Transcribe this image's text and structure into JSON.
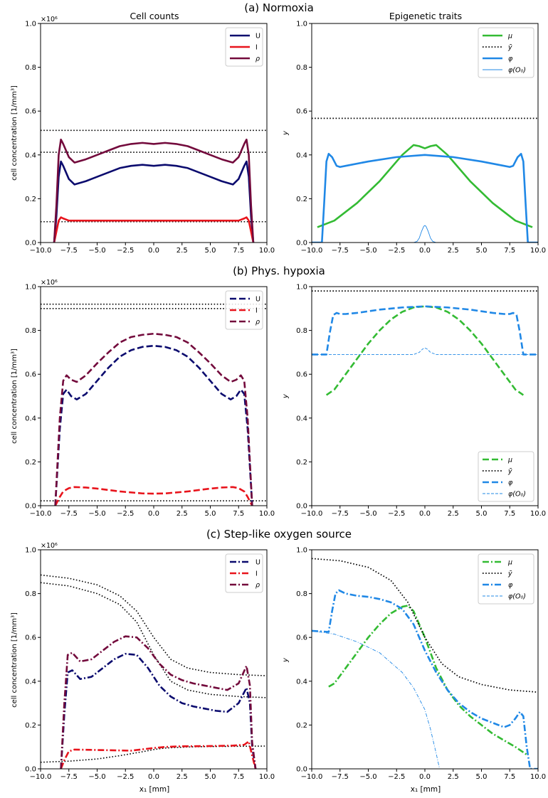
{
  "figure": {
    "rows": [
      {
        "title": "(a) Normoxia"
      },
      {
        "title": "(b) Phys. hypoxia"
      },
      {
        "title": "(c) Step-like oxygen source"
      }
    ],
    "col_titles": [
      "Cell counts",
      "Epigenetic traits"
    ],
    "left_ylabel": "cell concentration [1/mm³]",
    "left_multiplier": "×10⁶",
    "right_ylabel": "y",
    "xlabel": "x₁ [mm]",
    "x_ticks": [
      "−10.0",
      "−7.5",
      "−5.0",
      "−2.5",
      "0.0",
      "2.5",
      "5.0",
      "7.5",
      "10.0"
    ],
    "y_ticks": [
      "0.0",
      "0.2",
      "0.4",
      "0.6",
      "0.8",
      "1.0"
    ]
  },
  "colors": {
    "U": "#0b0b6e",
    "I": "#e8141c",
    "rho": "#730a3c",
    "mu": "#33bb33",
    "ybar": "#000000",
    "phi": "#2088e6"
  },
  "chart_data": [
    {
      "panel": "a-left",
      "type": "line",
      "title": "Cell counts",
      "ylabel": "cell concentration [1/mm³]",
      "xlim": [
        -10,
        10
      ],
      "ylim": [
        0,
        1
      ],
      "y_multiplier": "×10⁶",
      "legend": "top-right",
      "linestyle": "solid",
      "series": [
        {
          "name": "U",
          "x": [
            -8.8,
            -8.6,
            -8.4,
            -8.2,
            -8.0,
            -7.5,
            -7.0,
            -6.0,
            -5.0,
            -4.0,
            -3.0,
            -2.0,
            -1.0,
            0.0,
            1.0,
            2.0,
            3.0,
            4.0,
            5.0,
            6.0,
            7.0,
            7.5,
            8.0,
            8.2,
            8.4,
            8.6,
            8.8
          ],
          "values": [
            0,
            0.12,
            0.3,
            0.37,
            0.35,
            0.29,
            0.265,
            0.28,
            0.3,
            0.32,
            0.34,
            0.35,
            0.355,
            0.35,
            0.355,
            0.35,
            0.34,
            0.32,
            0.3,
            0.28,
            0.265,
            0.29,
            0.35,
            0.37,
            0.3,
            0.12,
            0
          ]
        },
        {
          "name": "I",
          "x": [
            -8.8,
            -8.6,
            -8.4,
            -8.2,
            -8.0,
            -7.5,
            -7.0,
            -5.0,
            -2.5,
            0.0,
            2.5,
            5.0,
            7.0,
            7.5,
            8.0,
            8.2,
            8.4,
            8.6,
            8.8
          ],
          "values": [
            0,
            0.05,
            0.1,
            0.115,
            0.11,
            0.1,
            0.1,
            0.1,
            0.1,
            0.1,
            0.1,
            0.1,
            0.1,
            0.1,
            0.11,
            0.115,
            0.1,
            0.05,
            0
          ]
        },
        {
          "name": "ρ",
          "x": [
            -8.8,
            -8.6,
            -8.4,
            -8.2,
            -8.0,
            -7.5,
            -7.0,
            -6.0,
            -5.0,
            -4.0,
            -3.0,
            -2.0,
            -1.0,
            0.0,
            1.0,
            2.0,
            3.0,
            4.0,
            5.0,
            6.0,
            7.0,
            7.5,
            8.0,
            8.2,
            8.4,
            8.6,
            8.8
          ],
          "values": [
            0,
            0.17,
            0.4,
            0.47,
            0.45,
            0.39,
            0.365,
            0.38,
            0.4,
            0.42,
            0.44,
            0.45,
            0.455,
            0.45,
            0.455,
            0.45,
            0.44,
            0.42,
            0.4,
            0.38,
            0.365,
            0.39,
            0.45,
            0.47,
            0.4,
            0.17,
            0
          ]
        }
      ],
      "hlines": [
        0.512,
        0.412,
        0.095
      ]
    },
    {
      "panel": "a-right",
      "type": "line",
      "title": "Epigenetic traits",
      "ylabel": "y",
      "xlim": [
        -10,
        10
      ],
      "ylim": [
        0,
        1
      ],
      "legend": "top-right",
      "linestyle": "solid",
      "series": [
        {
          "name": "μ",
          "x": [
            -9.5,
            -8.0,
            -6.0,
            -4.0,
            -2.0,
            -1.0,
            -0.5,
            0.0,
            0.5,
            1.0,
            2.0,
            4.0,
            6.0,
            8.0,
            9.5
          ],
          "values": [
            0.07,
            0.1,
            0.18,
            0.28,
            0.4,
            0.445,
            0.44,
            0.43,
            0.44,
            0.445,
            0.4,
            0.28,
            0.18,
            0.1,
            0.07
          ]
        },
        {
          "name": "ȳ",
          "x": [
            -10,
            10
          ],
          "values": [
            0.567,
            0.567
          ],
          "style": "dotted"
        },
        {
          "name": "φ",
          "x": [
            -10,
            -9.1,
            -8.9,
            -8.7,
            -8.5,
            -8.2,
            -7.8,
            -7.5,
            -7.0,
            -5.0,
            -2.5,
            0.0,
            2.5,
            5.0,
            7.0,
            7.5,
            7.8,
            8.2,
            8.5,
            8.7,
            8.9,
            9.1,
            10
          ],
          "values": [
            0,
            0,
            0.18,
            0.37,
            0.405,
            0.39,
            0.35,
            0.345,
            0.35,
            0.37,
            0.39,
            0.4,
            0.39,
            0.37,
            0.35,
            0.345,
            0.35,
            0.39,
            0.405,
            0.37,
            0.18,
            0,
            0
          ]
        },
        {
          "name": "φ(O₀)",
          "x": [
            -1.0,
            -0.7,
            -0.5,
            -0.3,
            -0.1,
            0.0,
            0.1,
            0.3,
            0.5,
            0.7,
            1.0
          ],
          "values": [
            0,
            0.005,
            0.02,
            0.05,
            0.074,
            0.078,
            0.074,
            0.05,
            0.02,
            0.005,
            0
          ],
          "style": "thin"
        }
      ]
    },
    {
      "panel": "b-left",
      "type": "line",
      "xlim": [
        -10,
        10
      ],
      "ylim": [
        0,
        1
      ],
      "y_multiplier": "×10⁶",
      "ylabel": "cell concentration [1/mm³]",
      "legend": "top-right",
      "linestyle": "dashed",
      "series": [
        {
          "name": "U",
          "x": [
            -8.7,
            -8.3,
            -8.0,
            -7.7,
            -7.3,
            -6.8,
            -6.0,
            -5.0,
            -4.0,
            -3.0,
            -2.0,
            -1.0,
            0.0,
            1.0,
            2.0,
            3.0,
            4.0,
            5.0,
            6.0,
            6.8,
            7.3,
            7.7,
            8.0,
            8.3,
            8.7
          ],
          "values": [
            0,
            0.35,
            0.51,
            0.53,
            0.5,
            0.485,
            0.51,
            0.57,
            0.63,
            0.68,
            0.71,
            0.725,
            0.73,
            0.725,
            0.71,
            0.68,
            0.63,
            0.57,
            0.51,
            0.485,
            0.5,
            0.53,
            0.51,
            0.35,
            0
          ]
        },
        {
          "name": "I",
          "x": [
            -8.7,
            -8.3,
            -8.0,
            -7.5,
            -7.0,
            -6.0,
            -5.0,
            -3.0,
            -1.0,
            0.0,
            1.0,
            3.0,
            5.0,
            6.0,
            7.0,
            7.5,
            8.0,
            8.3,
            8.7
          ],
          "values": [
            0,
            0.04,
            0.065,
            0.08,
            0.085,
            0.083,
            0.078,
            0.065,
            0.056,
            0.055,
            0.056,
            0.065,
            0.078,
            0.083,
            0.085,
            0.08,
            0.065,
            0.04,
            0
          ]
        },
        {
          "name": "ρ",
          "x": [
            -8.7,
            -8.3,
            -8.0,
            -7.7,
            -7.3,
            -6.8,
            -6.0,
            -5.0,
            -4.0,
            -3.0,
            -2.0,
            -1.0,
            0.0,
            1.0,
            2.0,
            3.0,
            4.0,
            5.0,
            6.0,
            6.8,
            7.3,
            7.7,
            8.0,
            8.3,
            8.7
          ],
          "values": [
            0,
            0.4,
            0.57,
            0.595,
            0.575,
            0.565,
            0.595,
            0.65,
            0.7,
            0.745,
            0.77,
            0.78,
            0.785,
            0.78,
            0.77,
            0.745,
            0.7,
            0.65,
            0.595,
            0.565,
            0.575,
            0.595,
            0.57,
            0.4,
            0
          ]
        }
      ],
      "hlines": [
        0.92,
        0.9,
        0.022
      ]
    },
    {
      "panel": "b-right",
      "type": "line",
      "xlim": [
        -10,
        10
      ],
      "ylim": [
        0,
        1
      ],
      "ylabel": "y",
      "legend": "bottom-right",
      "linestyle": "dashed",
      "series": [
        {
          "name": "μ",
          "x": [
            -8.7,
            -8.0,
            -7.0,
            -6.0,
            -5.0,
            -4.0,
            -3.0,
            -2.0,
            -1.0,
            0.0,
            1.0,
            2.0,
            3.0,
            4.0,
            5.0,
            6.0,
            7.0,
            8.0,
            8.7
          ],
          "values": [
            0.505,
            0.53,
            0.6,
            0.67,
            0.74,
            0.8,
            0.85,
            0.885,
            0.905,
            0.91,
            0.905,
            0.885,
            0.85,
            0.8,
            0.74,
            0.67,
            0.6,
            0.53,
            0.505
          ]
        },
        {
          "name": "ȳ",
          "x": [
            -10,
            10
          ],
          "values": [
            0.98,
            0.98
          ],
          "style": "dotted"
        },
        {
          "name": "φ",
          "x": [
            -10,
            -8.7,
            -8.4,
            -8.1,
            -7.8,
            -7.5,
            -7.0,
            -6.0,
            -4.0,
            -2.0,
            0.0,
            2.0,
            4.0,
            6.0,
            7.0,
            7.5,
            7.8,
            8.1,
            8.4,
            8.7,
            10
          ],
          "values": [
            0.69,
            0.69,
            0.79,
            0.87,
            0.88,
            0.875,
            0.875,
            0.88,
            0.895,
            0.905,
            0.91,
            0.905,
            0.895,
            0.88,
            0.875,
            0.875,
            0.88,
            0.87,
            0.79,
            0.69,
            0.69
          ]
        },
        {
          "name": "φ(O₀)",
          "x": [
            -10,
            -1.0,
            -0.5,
            -0.2,
            0.0,
            0.2,
            0.5,
            1.0,
            10
          ],
          "values": [
            0.69,
            0.69,
            0.7,
            0.715,
            0.72,
            0.715,
            0.7,
            0.69,
            0.69
          ],
          "style": "thin"
        }
      ]
    },
    {
      "panel": "c-left",
      "type": "line",
      "xlim": [
        -10,
        10
      ],
      "ylim": [
        0,
        1
      ],
      "y_multiplier": "×10⁶",
      "ylabel": "cell concentration [1/mm³]",
      "xlabel": "x₁ [mm]",
      "legend": "top-right",
      "linestyle": "dashdot",
      "series": [
        {
          "name": "U",
          "x": [
            -8.2,
            -7.9,
            -7.6,
            -7.2,
            -6.5,
            -5.5,
            -4.5,
            -3.5,
            -2.5,
            -1.5,
            -0.5,
            0.5,
            1.5,
            2.5,
            3.5,
            4.5,
            5.5,
            6.5,
            7.5,
            8.2,
            8.5,
            8.7,
            9.0
          ],
          "values": [
            0,
            0.25,
            0.44,
            0.45,
            0.41,
            0.42,
            0.46,
            0.5,
            0.525,
            0.52,
            0.46,
            0.38,
            0.33,
            0.3,
            0.285,
            0.275,
            0.265,
            0.26,
            0.3,
            0.37,
            0.3,
            0.1,
            0
          ]
        },
        {
          "name": "I",
          "x": [
            -8.2,
            -7.9,
            -7.5,
            -7.0,
            -6.0,
            -4.0,
            -2.0,
            0.0,
            1.0,
            2.5,
            5.0,
            7.0,
            8.0,
            8.4,
            8.7,
            9.0
          ],
          "values": [
            0,
            0.04,
            0.08,
            0.088,
            0.087,
            0.085,
            0.083,
            0.095,
            0.1,
            0.103,
            0.104,
            0.106,
            0.11,
            0.125,
            0.06,
            0
          ]
        },
        {
          "name": "ρ",
          "x": [
            -8.2,
            -7.9,
            -7.6,
            -7.2,
            -6.5,
            -5.5,
            -4.5,
            -3.5,
            -2.5,
            -1.5,
            -0.5,
            0.5,
            1.5,
            2.5,
            3.5,
            4.5,
            5.5,
            6.5,
            7.5,
            8.2,
            8.5,
            8.7,
            9.0
          ],
          "values": [
            0,
            0.3,
            0.52,
            0.53,
            0.49,
            0.5,
            0.54,
            0.58,
            0.605,
            0.6,
            0.55,
            0.48,
            0.43,
            0.405,
            0.39,
            0.38,
            0.37,
            0.36,
            0.39,
            0.47,
            0.38,
            0.12,
            0
          ]
        }
      ],
      "hcurves": [
        {
          "x": [
            -10,
            -7.5,
            -5.0,
            -3.0,
            -1.5,
            0.0,
            1.5,
            3.0,
            5.0,
            7.5,
            10
          ],
          "values": [
            0.885,
            0.87,
            0.84,
            0.79,
            0.72,
            0.6,
            0.5,
            0.46,
            0.44,
            0.43,
            0.425
          ]
        },
        {
          "x": [
            -10,
            -7.5,
            -5.0,
            -3.0,
            -1.5,
            0.0,
            1.5,
            3.0,
            5.0,
            7.5,
            10
          ],
          "values": [
            0.85,
            0.835,
            0.8,
            0.75,
            0.67,
            0.52,
            0.4,
            0.36,
            0.34,
            0.33,
            0.325
          ]
        },
        {
          "x": [
            -10,
            -7.5,
            -5.0,
            -3.0,
            -1.0,
            0.0,
            1.0,
            3.0,
            5.0,
            7.5,
            10
          ],
          "values": [
            0.03,
            0.035,
            0.045,
            0.06,
            0.078,
            0.088,
            0.095,
            0.1,
            0.102,
            0.103,
            0.104
          ]
        }
      ]
    },
    {
      "panel": "c-right",
      "type": "line",
      "xlim": [
        -10,
        10
      ],
      "ylim": [
        0,
        1
      ],
      "ylabel": "y",
      "xlabel": "x₁ [mm]",
      "legend": "top-right",
      "linestyle": "dashdot",
      "series": [
        {
          "name": "μ",
          "x": [
            -8.5,
            -8.0,
            -7.0,
            -6.0,
            -5.0,
            -4.0,
            -3.0,
            -2.0,
            -1.5,
            -1.0,
            0.0,
            1.0,
            2.0,
            3.0,
            4.0,
            5.0,
            6.0,
            7.0,
            8.0,
            9.0
          ],
          "values": [
            0.375,
            0.39,
            0.46,
            0.53,
            0.6,
            0.66,
            0.71,
            0.74,
            0.745,
            0.72,
            0.6,
            0.46,
            0.36,
            0.29,
            0.24,
            0.2,
            0.16,
            0.13,
            0.1,
            0.065
          ]
        },
        {
          "name": "ȳ",
          "x": [
            -10,
            -7.5,
            -5.0,
            -3.0,
            -1.5,
            0.0,
            1.5,
            3.0,
            5.0,
            7.5,
            10
          ],
          "values": [
            0.96,
            0.95,
            0.92,
            0.86,
            0.76,
            0.6,
            0.48,
            0.42,
            0.385,
            0.36,
            0.35
          ],
          "style": "dotted"
        },
        {
          "name": "φ",
          "x": [
            -10,
            -8.5,
            -8.2,
            -7.9,
            -7.6,
            -7.0,
            -6.0,
            -5.0,
            -4.0,
            -3.0,
            -2.0,
            -1.0,
            0.0,
            1.0,
            2.0,
            3.0,
            4.0,
            5.0,
            6.0,
            7.0,
            7.5,
            8.0,
            8.4,
            8.7,
            9.0,
            9.3,
            10
          ],
          "values": [
            0.63,
            0.625,
            0.72,
            0.8,
            0.815,
            0.8,
            0.79,
            0.785,
            0.775,
            0.76,
            0.73,
            0.66,
            0.54,
            0.44,
            0.36,
            0.3,
            0.26,
            0.23,
            0.21,
            0.19,
            0.2,
            0.23,
            0.26,
            0.24,
            0.1,
            0,
            0
          ]
        },
        {
          "name": "φ(O₀)",
          "x": [
            -10,
            -8.0,
            -6.0,
            -4.0,
            -2.0,
            -1.0,
            0.0,
            0.5,
            1.0,
            1.3
          ],
          "values": [
            0.63,
            0.615,
            0.58,
            0.53,
            0.44,
            0.37,
            0.27,
            0.18,
            0.07,
            0
          ],
          "style": "thin"
        }
      ]
    }
  ]
}
